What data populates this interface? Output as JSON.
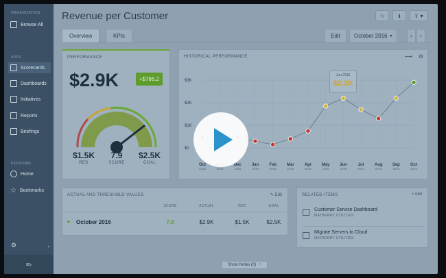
{
  "sidebar": {
    "org_section": "ORGANIZATION",
    "browse_all": "Browse All",
    "apps_section": "APPS",
    "items": [
      {
        "label": "Scorecards",
        "icon": "scorecards-icon",
        "active": true
      },
      {
        "label": "Dashboards",
        "icon": "dashboards-icon"
      },
      {
        "label": "Initiatives",
        "icon": "initiatives-icon"
      },
      {
        "label": "Reports",
        "icon": "reports-icon"
      },
      {
        "label": "Briefings",
        "icon": "briefings-icon"
      }
    ],
    "personal_section": "PERSONAL",
    "personal_items": [
      {
        "label": "Home",
        "icon": "home-icon"
      },
      {
        "label": "Bookmarks",
        "icon": "star-icon"
      }
    ],
    "footer_icon": "≡›"
  },
  "header": {
    "title": "Revenue per Customer",
    "tabs": [
      "Overview",
      "KPIs"
    ],
    "edit_label": "Edit",
    "period": "October 2016"
  },
  "performance": {
    "title": "PERFORMANCE",
    "value": "$2.9K",
    "change": "+$766.2",
    "red_value": "$1.5K",
    "red_label": "RED",
    "score_value": "7.9",
    "score_label": "SCORE",
    "goal_value": "$2.5K",
    "goal_label": "GOAL",
    "gauge_fraction": 0.79
  },
  "history": {
    "title": "HISTORICAL PERFORMANCE",
    "tooltip_date": "Jun 2016",
    "tooltip_value": "$2.2K"
  },
  "chart_data": {
    "type": "line",
    "x": [
      "Oct 2015",
      "Nov 2015",
      "Dec 2015",
      "Jan 2016",
      "Feb 2016",
      "Mar 2016",
      "Apr 2016",
      "May 2016",
      "Jun 2016",
      "Jul 2016",
      "Aug 2016",
      "Sep 2016",
      "Oct 2016"
    ],
    "x_months": [
      "Oct",
      "Nov",
      "Dec",
      "Jan",
      "Feb",
      "Mar",
      "Apr",
      "May",
      "Jun",
      "Jul",
      "Aug",
      "Sep",
      "Oct"
    ],
    "x_years": [
      "2015",
      "2015",
      "2015",
      "2016",
      "2016",
      "2016",
      "2016",
      "2016",
      "2016",
      "2016",
      "2016",
      "2016",
      "2016"
    ],
    "y": [
      450,
      450,
      450,
      300,
      150,
      400,
      750,
      1850,
      2200,
      1700,
      1300,
      2200,
      2900
    ],
    "status": [
      "red",
      "red",
      "red",
      "red",
      "red",
      "red",
      "red",
      "yellow",
      "yellow",
      "yellow",
      "red",
      "yellow",
      "green"
    ],
    "y_ticks": [
      "$0",
      "$1K",
      "$2K",
      "$3K"
    ],
    "ylim": [
      0,
      3000
    ],
    "status_colors": {
      "red": "#c0392b",
      "yellow": "#d4b43a",
      "green": "#5e9c2e"
    }
  },
  "thresholds": {
    "title": "ACTUAL AND THRESHOLD VALUES",
    "edit_label": "Edit",
    "columns": [
      "SCORE",
      "ACTUAL",
      "RED",
      "GOAL"
    ],
    "row": {
      "period": "October 2016",
      "score": "7.9",
      "actual": "$2.9K",
      "red": "$1.5K",
      "goal": "$2.5K"
    }
  },
  "related": {
    "title": "RELATED ITEMS",
    "add_label": "Add",
    "items": [
      {
        "title": "Customer Service Dashboard",
        "subtitle": "MAYBERRY UTILITIES"
      },
      {
        "title": "Migrate Servers to Cloud",
        "subtitle": "MAYBERRY UTILITIES"
      }
    ]
  },
  "notes": {
    "label": "Show Notes (0)"
  }
}
